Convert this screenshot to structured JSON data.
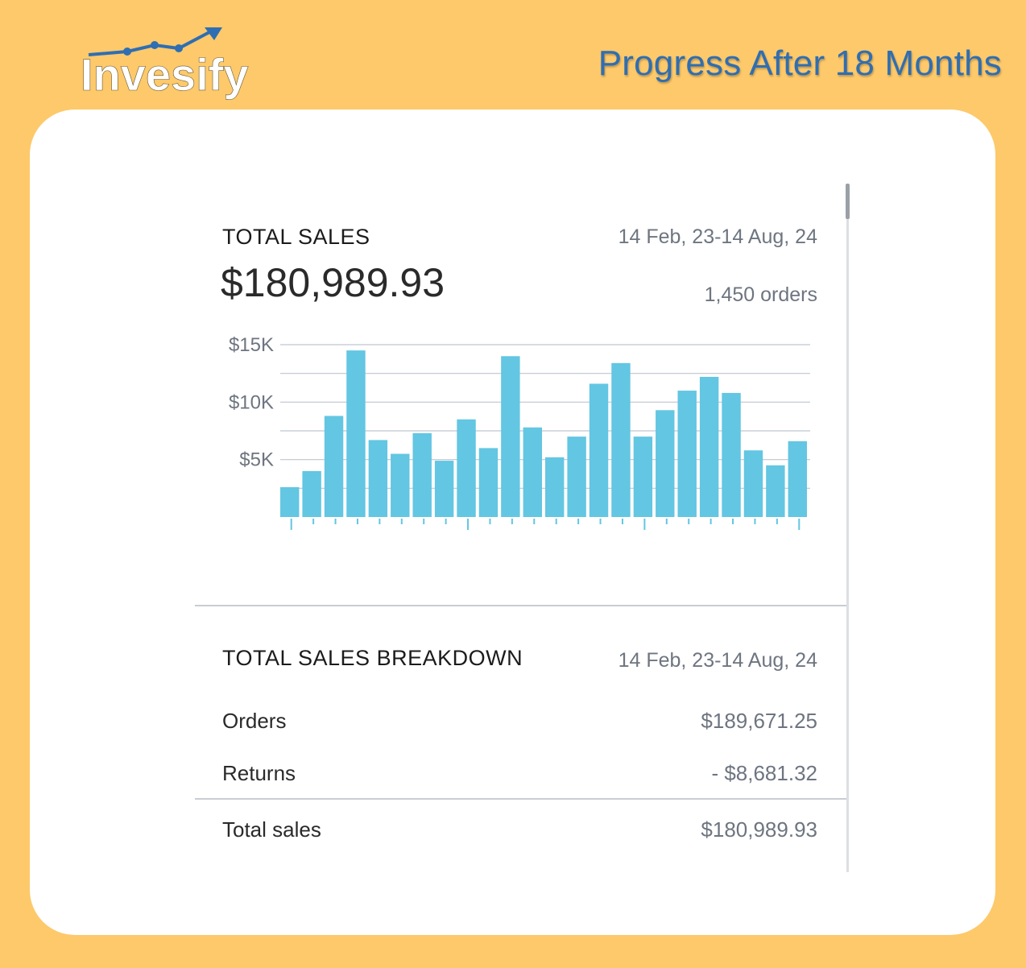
{
  "brand": {
    "name": "Invesify"
  },
  "headline": "Progress After 18 Months",
  "sales": {
    "label": "TOTAL SALES",
    "amount": "$180,989.93",
    "date_range": "14 Feb, 23-14 Aug, 24",
    "orders": "1,450 orders"
  },
  "chart_data": {
    "type": "bar",
    "ylim": [
      0,
      15000
    ],
    "ytick_labels": [
      "$15K",
      "$10K",
      "$5K"
    ],
    "ytick_values": [
      15000,
      10000,
      5000
    ],
    "grid": true,
    "values": [
      2600,
      4000,
      8800,
      14500,
      6700,
      5500,
      7300,
      4900,
      8500,
      6000,
      14000,
      7800,
      5200,
      7000,
      11600,
      13400,
      7000,
      9300,
      11000,
      12200,
      10800,
      5800,
      4500,
      6600
    ]
  },
  "breakdown": {
    "label": "TOTAL SALES BREAKDOWN",
    "date_range": "14 Feb, 23-14 Aug, 24",
    "rows": [
      {
        "label": "Orders",
        "value": "$189,671.25"
      },
      {
        "label": "Returns",
        "value": "- $8,681.32"
      }
    ],
    "total": {
      "label": "Total sales",
      "value": "$180,989.93"
    }
  },
  "colors": {
    "background": "#fdc96a",
    "bar": "#63c6e2",
    "headline": "#2f6eb2"
  }
}
